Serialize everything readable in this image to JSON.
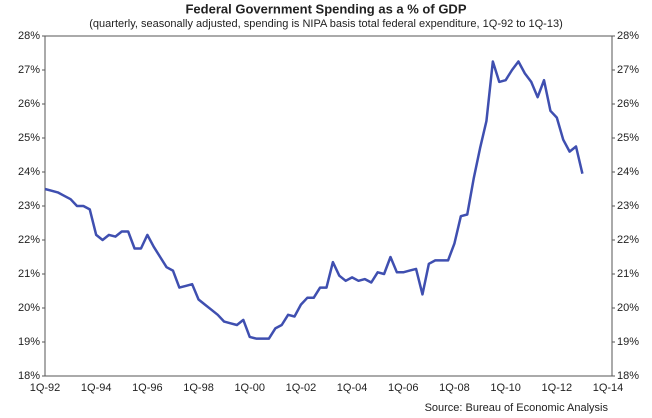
{
  "chart_data": {
    "type": "line",
    "title": "Federal Government Spending as a % of GDP",
    "subtitle": "(quarterly, seasonally adjusted, spending is NIPA basis total federal expenditure, 1Q-92 to 1Q-13)",
    "source": "Source: Bureau of Economic Analysis",
    "categories": [
      "1Q-92",
      null,
      null,
      null,
      null,
      null,
      null,
      null,
      "1Q-94",
      null,
      null,
      null,
      null,
      null,
      null,
      null,
      "1Q-96",
      null,
      null,
      null,
      null,
      null,
      null,
      null,
      "1Q-98",
      null,
      null,
      null,
      null,
      null,
      null,
      null,
      "1Q-00",
      null,
      null,
      null,
      null,
      null,
      null,
      null,
      "1Q-02",
      null,
      null,
      null,
      null,
      null,
      null,
      null,
      "1Q-04",
      null,
      null,
      null,
      null,
      null,
      null,
      null,
      "1Q-06",
      null,
      null,
      null,
      null,
      null,
      null,
      null,
      "1Q-08",
      null,
      null,
      null,
      null,
      null,
      null,
      null,
      "1Q-10",
      null,
      null,
      null,
      null,
      null,
      null,
      null,
      "1Q-12",
      null,
      null,
      null,
      null,
      null,
      null,
      null,
      "1Q-14"
    ],
    "series": [
      {
        "color": "#3f4fb0",
        "values": [
          23.5,
          23.45,
          23.4,
          23.3,
          23.2,
          23.0,
          23.0,
          22.9,
          22.15,
          22.0,
          22.15,
          22.1,
          22.25,
          22.25,
          21.75,
          21.75,
          22.15,
          21.8,
          21.5,
          21.2,
          21.1,
          20.6,
          20.65,
          20.7,
          20.25,
          20.1,
          19.95,
          19.8,
          19.6,
          19.55,
          19.5,
          19.65,
          19.15,
          19.1,
          19.1,
          19.1,
          19.4,
          19.5,
          19.8,
          19.75,
          20.1,
          20.3,
          20.3,
          20.6,
          20.6,
          21.35,
          20.95,
          20.8,
          20.9,
          20.8,
          20.85,
          20.75,
          21.05,
          21.0,
          21.5,
          21.05,
          21.05,
          21.1,
          21.15,
          20.4,
          21.3,
          21.4,
          21.4,
          21.4,
          21.9,
          22.7,
          22.75,
          23.8,
          24.7,
          25.5,
          27.25,
          26.65,
          26.7,
          27.0,
          27.25,
          26.9,
          26.65,
          26.2,
          26.7,
          25.8,
          25.6,
          24.95,
          24.6,
          24.75,
          23.95,
          null,
          null,
          null,
          null
        ]
      }
    ],
    "ylim": [
      18,
      28
    ],
    "yticks": [
      {
        "value": 18,
        "label": "18%"
      },
      {
        "value": 19,
        "label": "19%"
      },
      {
        "value": 20,
        "label": "20%"
      },
      {
        "value": 21,
        "label": "21%"
      },
      {
        "value": 22,
        "label": "22%"
      },
      {
        "value": 23,
        "label": "23%"
      },
      {
        "value": 24,
        "label": "24%"
      },
      {
        "value": 25,
        "label": "25%"
      },
      {
        "value": 26,
        "label": "26%"
      },
      {
        "value": 27,
        "label": "27%"
      },
      {
        "value": 28,
        "label": "28%"
      }
    ],
    "y2lim": [
      18,
      28
    ],
    "y2ticks": [
      {
        "value": 18,
        "label": "18%"
      },
      {
        "value": 19,
        "label": "19%"
      },
      {
        "value": 20,
        "label": "20%"
      },
      {
        "value": 21,
        "label": "21%"
      },
      {
        "value": 22,
        "label": "22%"
      },
      {
        "value": 23,
        "label": "23%"
      },
      {
        "value": 24,
        "label": "24%"
      },
      {
        "value": 25,
        "label": "25%"
      },
      {
        "value": 26,
        "label": "26%"
      },
      {
        "value": 27,
        "label": "27%"
      },
      {
        "value": 28,
        "label": "28%"
      }
    ],
    "grid": false
  }
}
